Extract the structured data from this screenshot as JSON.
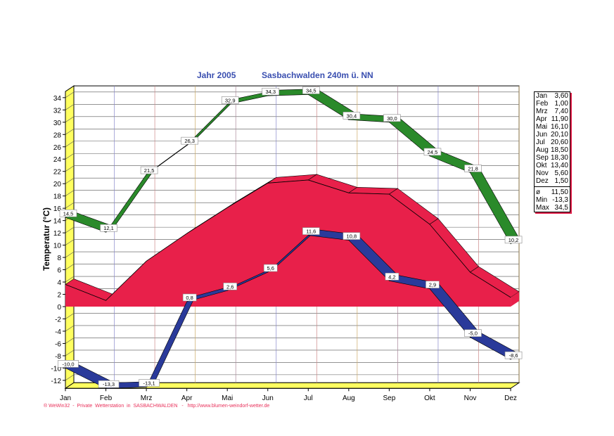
{
  "chart_data": {
    "type": "area",
    "title_left": "Jahr  2005",
    "title_right": "Sasbachwalden  240m ü. NN",
    "ylabel": "Temperatur  (°C)",
    "xlabel": "",
    "categories": [
      "Jan",
      "Feb",
      "Mrz",
      "Apr",
      "Mai",
      "Jun",
      "Jul",
      "Aug",
      "Sep",
      "Okt",
      "Nov",
      "Dez"
    ],
    "ylim": [
      -13.3,
      35
    ],
    "yticks": [
      -12,
      -10,
      -8,
      -6,
      -4,
      -2,
      0,
      2,
      4,
      6,
      8,
      10,
      12,
      14,
      16,
      18,
      20,
      22,
      24,
      26,
      28,
      30,
      32,
      34
    ],
    "grid": true,
    "series": [
      {
        "key": "max",
        "values": [
          14.5,
          12.1,
          21.5,
          26.3,
          32.9,
          34.3,
          34.5,
          30.4,
          30.0,
          24.5,
          21.8,
          10.2
        ],
        "labels": [
          "14,5",
          "12,1",
          "21,5",
          "26,3",
          "32,9",
          "34,3",
          "34,5",
          "30,4",
          "30,0",
          "24,5",
          "21,8",
          "10,2"
        ],
        "color": "#2a8a2a"
      },
      {
        "key": "mean",
        "values": [
          3.6,
          1.0,
          7.4,
          11.9,
          16.1,
          20.1,
          20.6,
          18.5,
          18.3,
          13.4,
          5.6,
          1.5
        ],
        "color": "#e8204a"
      },
      {
        "key": "min",
        "values": [
          -10.0,
          -13.3,
          -13.1,
          0.8,
          2.6,
          5.6,
          11.6,
          10.8,
          4.2,
          2.9,
          -5.0,
          -8.6
        ],
        "labels": [
          "-10,0",
          "-13,3",
          "-13,1",
          "0,8",
          "2,6",
          "5,6",
          "11,6",
          "10,8",
          "4,2",
          "2,9",
          "-5,0",
          "-8,6"
        ],
        "color": "#2a3a9a"
      }
    ],
    "wall_color": "#ffff60",
    "legend_placement": "right"
  },
  "legend": {
    "rows": [
      [
        "Jan",
        "3,60"
      ],
      [
        "Feb",
        "1,00"
      ],
      [
        "Mrz",
        "7,40"
      ],
      [
        "Apr",
        "11,90"
      ],
      [
        "Mai",
        "16,10"
      ],
      [
        "Jun",
        "20,10"
      ],
      [
        "Jul",
        "20,60"
      ],
      [
        "Aug",
        "18,50"
      ],
      [
        "Sep",
        "18,30"
      ],
      [
        "Okt",
        "13,40"
      ],
      [
        "Nov",
        "5,60"
      ],
      [
        "Dez",
        "1,50"
      ]
    ],
    "summary": [
      [
        "ø",
        "11,50"
      ],
      [
        "Min",
        "-13,3"
      ],
      [
        "Max",
        "34,5"
      ]
    ]
  },
  "footer": "® WeWin32  -  Private  Wetterstation  in  SASBACHWALDEN   -   http://www.blumen-weindorf-wetter.de"
}
